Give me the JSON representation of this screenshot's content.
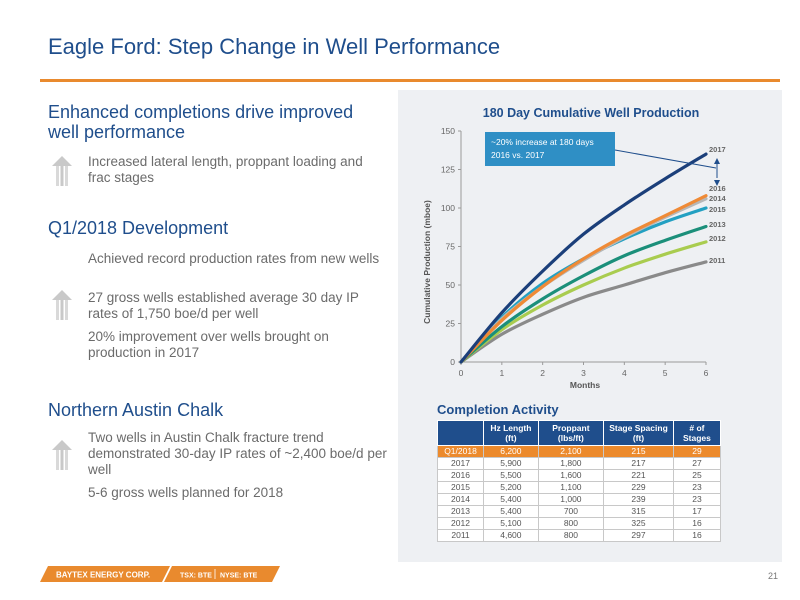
{
  "page": {
    "title": "Eagle Ford: Step Change in Well Performance",
    "page_number": "21"
  },
  "left": {
    "sections": [
      {
        "heading": "Enhanced completions drive improved well performance",
        "bullets": [
          "Increased lateral length, proppant loading and frac stages"
        ]
      },
      {
        "heading": "Q1/2018 Development",
        "bullets": [
          "Achieved record production rates from new wells",
          "27 gross wells established average 30 day IP rates of 1,750 boe/d per well",
          "20% improvement over wells brought on production in 2017"
        ]
      },
      {
        "heading": "Northern Austin Chalk",
        "bullets": [
          "Two wells in Austin Chalk fracture trend demonstrated 30-day IP rates of ~2,400 boe/d per well",
          "5-6 gross wells planned for 2018"
        ]
      }
    ]
  },
  "chart_data": {
    "type": "line",
    "title": "180 Day Cumulative Well Production",
    "xlabel": "Months",
    "ylabel": "Cumulative Production (mboe)",
    "xlim": [
      0,
      6
    ],
    "ylim": [
      0,
      150
    ],
    "xticks": [
      "0",
      "1",
      "2",
      "3",
      "4",
      "5",
      "6"
    ],
    "yticks": [
      "0",
      "25",
      "50",
      "75",
      "100",
      "125",
      "150"
    ],
    "x": [
      0,
      1,
      2,
      3,
      4,
      5,
      6
    ],
    "series": [
      {
        "name": "2017",
        "color": "#1b3f7a",
        "values": [
          0,
          32,
          59,
          83,
          102,
          119,
          135
        ]
      },
      {
        "name": "2016",
        "color": "#ef8a36",
        "values": [
          0,
          27,
          49,
          67,
          82,
          95,
          108
        ]
      },
      {
        "name": "2014",
        "color": "#b7b7b7",
        "values": [
          0,
          28,
          49,
          66,
          81,
          94,
          106
        ]
      },
      {
        "name": "2015",
        "color": "#23a0c2",
        "values": [
          0,
          29,
          51,
          67,
          80,
          91,
          100
        ]
      },
      {
        "name": "2013",
        "color": "#1b8f7a",
        "values": [
          0,
          23,
          41,
          56,
          69,
          79,
          88
        ]
      },
      {
        "name": "2012",
        "color": "#a9cc4f",
        "values": [
          0,
          21,
          37,
          50,
          61,
          70,
          78
        ]
      },
      {
        "name": "2011",
        "color": "#8a8a8a",
        "values": [
          0,
          18,
          31,
          42,
          50,
          58,
          65
        ]
      }
    ],
    "annotation": "~20% increase at 180 days 2016 vs. 2017"
  },
  "completion_activity": {
    "title": "Completion Activity",
    "columns": [
      "",
      "Hz Length (ft)",
      "Proppant (lbs/ft)",
      "Stage Spacing (ft)",
      "# of Stages"
    ],
    "rows": [
      [
        "Q1/2018",
        "6,200",
        "2,100",
        "215",
        "29"
      ],
      [
        "2017",
        "5,900",
        "1,800",
        "217",
        "27"
      ],
      [
        "2016",
        "5,500",
        "1,600",
        "221",
        "25"
      ],
      [
        "2015",
        "5,200",
        "1,100",
        "229",
        "23"
      ],
      [
        "2014",
        "5,400",
        "1,000",
        "239",
        "23"
      ],
      [
        "2013",
        "5,400",
        "700",
        "315",
        "17"
      ],
      [
        "2012",
        "5,100",
        "800",
        "325",
        "16"
      ],
      [
        "2011",
        "4,600",
        "800",
        "297",
        "16"
      ]
    ],
    "highlight_row": 0
  },
  "footer": {
    "company": "BAYTEX ENERGY CORP.",
    "tsx": "TSX: BTE",
    "nyse": "NYSE: BTE"
  },
  "colors": {
    "title": "#1f4e8c",
    "accent": "#e98a2e",
    "highlight": "#ec8a2c"
  }
}
